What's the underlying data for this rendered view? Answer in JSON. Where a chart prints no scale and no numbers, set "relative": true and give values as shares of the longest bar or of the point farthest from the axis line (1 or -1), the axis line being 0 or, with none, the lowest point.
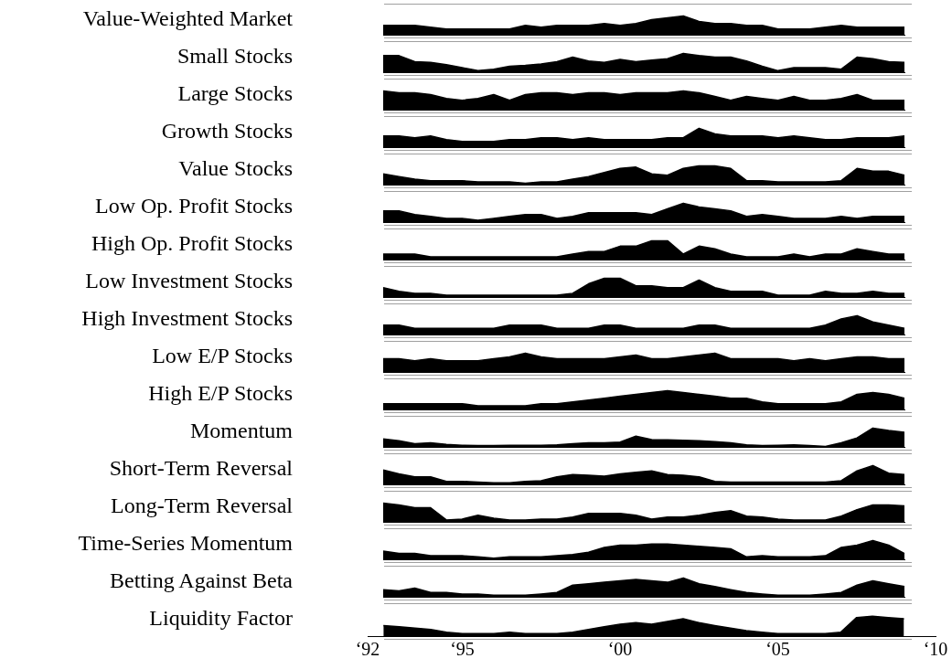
{
  "chart_data": [
    {
      "type": "area",
      "ylabel": "Value-Weighted Market",
      "relative": true,
      "color": "#000000",
      "categories": [
        null,
        null,
        null,
        null,
        null,
        null,
        null,
        null,
        null,
        null,
        null,
        null,
        null,
        null,
        null,
        null,
        null,
        null,
        null,
        null,
        null,
        null,
        null,
        null,
        null,
        null,
        null,
        null,
        null,
        null,
        null,
        null,
        null,
        null
      ],
      "values": [
        0.5,
        0.5,
        0.5,
        0.4,
        0.3,
        0.3,
        0.3,
        0.3,
        0.3,
        0.5,
        0.4,
        0.5,
        0.5,
        0.5,
        0.6,
        0.5,
        0.6,
        0.8,
        0.9,
        1,
        0.7,
        0.6,
        0.6,
        0.5,
        0.5,
        0.3,
        0.3,
        0.3,
        0.4,
        0.5,
        0.4,
        0.4,
        0.4,
        0.4
      ]
    },
    {
      "type": "area",
      "ylabel": "Small Stocks",
      "relative": true,
      "color": "#000000",
      "categories": [
        null,
        null,
        null,
        null,
        null,
        null,
        null,
        null,
        null,
        null,
        null,
        null,
        null,
        null,
        null,
        null,
        null,
        null,
        null,
        null,
        null,
        null,
        null,
        null,
        null,
        null,
        null,
        null,
        null,
        null,
        null,
        null,
        null,
        null
      ],
      "values": [
        0.88,
        0.88,
        0.56,
        0.52,
        0.4,
        0.24,
        0.08,
        0.16,
        0.32,
        0.36,
        0.44,
        0.56,
        0.8,
        0.6,
        0.52,
        0.68,
        0.56,
        0.64,
        0.72,
        1,
        0.88,
        0.8,
        0.8,
        0.6,
        0.32,
        0.08,
        0.24,
        0.24,
        0.24,
        0.16,
        0.8,
        0.72,
        0.56,
        0.52
      ]
    },
    {
      "type": "area",
      "ylabel": "Large Stocks",
      "relative": true,
      "color": "#000000",
      "categories": [
        null,
        null,
        null,
        null,
        null,
        null,
        null,
        null,
        null,
        null,
        null,
        null,
        null,
        null,
        null,
        null,
        null,
        null,
        null,
        null,
        null,
        null,
        null,
        null,
        null,
        null,
        null,
        null,
        null,
        null,
        null,
        null,
        null,
        null
      ],
      "values": [
        1,
        0.9,
        0.9,
        0.8,
        0.6,
        0.5,
        0.6,
        0.8,
        0.5,
        0.8,
        0.9,
        0.9,
        0.8,
        0.9,
        0.9,
        0.8,
        0.9,
        0.9,
        0.9,
        1,
        0.9,
        0.7,
        0.5,
        0.7,
        0.6,
        0.5,
        0.7,
        0.5,
        0.5,
        0.6,
        0.8,
        0.5,
        0.5,
        0.5
      ]
    },
    {
      "type": "area",
      "ylabel": "Growth Stocks",
      "relative": true,
      "color": "#000000",
      "categories": [
        null,
        null,
        null,
        null,
        null,
        null,
        null,
        null,
        null,
        null,
        null,
        null,
        null,
        null,
        null,
        null,
        null,
        null,
        null,
        null,
        null,
        null,
        null,
        null,
        null,
        null,
        null,
        null,
        null,
        null,
        null,
        null,
        null,
        null
      ],
      "values": [
        0.6,
        0.6,
        0.5,
        0.6,
        0.4,
        0.3,
        0.3,
        0.3,
        0.4,
        0.4,
        0.5,
        0.5,
        0.4,
        0.5,
        0.4,
        0.4,
        0.4,
        0.4,
        0.5,
        0.5,
        1,
        0.7,
        0.6,
        0.6,
        0.6,
        0.5,
        0.6,
        0.5,
        0.4,
        0.4,
        0.5,
        0.5,
        0.5,
        0.6
      ]
    },
    {
      "type": "area",
      "ylabel": "Value Stocks",
      "relative": true,
      "color": "#000000",
      "categories": [
        null,
        null,
        null,
        null,
        null,
        null,
        null,
        null,
        null,
        null,
        null,
        null,
        null,
        null,
        null,
        null,
        null,
        null,
        null,
        null,
        null,
        null,
        null,
        null,
        null,
        null,
        null,
        null,
        null,
        null,
        null,
        null,
        null,
        null
      ],
      "values": [
        0.57,
        0.43,
        0.29,
        0.21,
        0.21,
        0.21,
        0.14,
        0.14,
        0.14,
        0.07,
        0.14,
        0.14,
        0.29,
        0.43,
        0.64,
        0.86,
        0.93,
        0.57,
        0.5,
        0.86,
        1,
        1,
        0.86,
        0.21,
        0.21,
        0.14,
        0.14,
        0.14,
        0.14,
        0.21,
        0.86,
        0.71,
        0.71,
        0.5
      ]
    },
    {
      "type": "area",
      "ylabel": "Low Op. Profit Stocks",
      "relative": true,
      "color": "#000000",
      "categories": [
        null,
        null,
        null,
        null,
        null,
        null,
        null,
        null,
        null,
        null,
        null,
        null,
        null,
        null,
        null,
        null,
        null,
        null,
        null,
        null,
        null,
        null,
        null,
        null,
        null,
        null,
        null,
        null,
        null,
        null,
        null,
        null,
        null,
        null
      ],
      "values": [
        0.6,
        0.6,
        0.4,
        0.3,
        0.2,
        0.2,
        0.1,
        0.2,
        0.3,
        0.4,
        0.4,
        0.2,
        0.3,
        0.5,
        0.5,
        0.5,
        0.5,
        0.4,
        0.7,
        1,
        0.8,
        0.7,
        0.6,
        0.3,
        0.4,
        0.3,
        0.2,
        0.2,
        0.2,
        0.3,
        0.2,
        0.3,
        0.3,
        0.3
      ]
    },
    {
      "type": "area",
      "ylabel": "High Op. Profit Stocks",
      "relative": true,
      "color": "#000000",
      "categories": [
        null,
        null,
        null,
        null,
        null,
        null,
        null,
        null,
        null,
        null,
        null,
        null,
        null,
        null,
        null,
        null,
        null,
        null,
        null,
        null,
        null,
        null,
        null,
        null,
        null,
        null,
        null,
        null,
        null,
        null,
        null,
        null,
        null,
        null
      ],
      "values": [
        0.29,
        0.29,
        0.29,
        0.14,
        0.14,
        0.14,
        0.14,
        0.14,
        0.14,
        0.14,
        0.14,
        0.14,
        0.29,
        0.43,
        0.43,
        0.71,
        0.71,
        1,
        1,
        0.29,
        0.71,
        0.57,
        0.29,
        0.14,
        0.14,
        0.14,
        0.29,
        0.14,
        0.29,
        0.29,
        0.57,
        0.43,
        0.29,
        0.29
      ]
    },
    {
      "type": "area",
      "ylabel": "Low Investment Stocks",
      "relative": true,
      "color": "#000000",
      "categories": [
        null,
        null,
        null,
        null,
        null,
        null,
        null,
        null,
        null,
        null,
        null,
        null,
        null,
        null,
        null,
        null,
        null,
        null,
        null,
        null,
        null,
        null,
        null,
        null,
        null,
        null,
        null,
        null,
        null,
        null,
        null,
        null,
        null,
        null
      ],
      "values": [
        0.5,
        0.3,
        0.2,
        0.2,
        0.1,
        0.1,
        0.1,
        0.1,
        0.1,
        0.1,
        0.1,
        0.1,
        0.2,
        0.7,
        1,
        1,
        0.6,
        0.6,
        0.5,
        0.5,
        0.9,
        0.5,
        0.3,
        0.3,
        0.3,
        0.1,
        0.1,
        0.1,
        0.3,
        0.2,
        0.2,
        0.3,
        0.2,
        0.2
      ]
    },
    {
      "type": "area",
      "ylabel": "High Investment Stocks",
      "relative": true,
      "color": "#000000",
      "categories": [
        null,
        null,
        null,
        null,
        null,
        null,
        null,
        null,
        null,
        null,
        null,
        null,
        null,
        null,
        null,
        null,
        null,
        null,
        null,
        null,
        null,
        null,
        null,
        null,
        null,
        null,
        null,
        null,
        null,
        null,
        null,
        null,
        null,
        null
      ],
      "values": [
        0.5,
        0.5,
        0.33,
        0.33,
        0.33,
        0.33,
        0.33,
        0.33,
        0.5,
        0.5,
        0.5,
        0.33,
        0.33,
        0.33,
        0.5,
        0.5,
        0.33,
        0.33,
        0.33,
        0.33,
        0.5,
        0.5,
        0.33,
        0.33,
        0.33,
        0.33,
        0.33,
        0.33,
        0.5,
        0.83,
        1,
        0.67,
        0.5,
        0.33
      ]
    },
    {
      "type": "area",
      "ylabel": "Low E/P Stocks",
      "relative": true,
      "color": "#000000",
      "categories": [
        null,
        null,
        null,
        null,
        null,
        null,
        null,
        null,
        null,
        null,
        null,
        null,
        null,
        null,
        null,
        null,
        null,
        null,
        null,
        null,
        null,
        null,
        null,
        null,
        null,
        null,
        null,
        null,
        null,
        null,
        null,
        null,
        null,
        null
      ],
      "values": [
        0.7,
        0.7,
        0.6,
        0.7,
        0.6,
        0.6,
        0.6,
        0.7,
        0.8,
        1,
        0.8,
        0.7,
        0.7,
        0.7,
        0.7,
        0.8,
        0.9,
        0.7,
        0.7,
        0.8,
        0.9,
        1,
        0.7,
        0.7,
        0.7,
        0.7,
        0.6,
        0.7,
        0.6,
        0.7,
        0.8,
        0.8,
        0.7,
        0.7
      ]
    },
    {
      "type": "area",
      "ylabel": "High E/P Stocks",
      "relative": true,
      "color": "#000000",
      "categories": [
        null,
        null,
        null,
        null,
        null,
        null,
        null,
        null,
        null,
        null,
        null,
        null,
        null,
        null,
        null,
        null,
        null,
        null,
        null,
        null,
        null,
        null,
        null,
        null,
        null,
        null,
        null,
        null,
        null,
        null,
        null,
        null,
        null,
        null
      ],
      "values": [
        0.3,
        0.3,
        0.3,
        0.3,
        0.3,
        0.3,
        0.2,
        0.2,
        0.2,
        0.2,
        0.3,
        0.3,
        0.4,
        0.5,
        0.6,
        0.7,
        0.8,
        0.9,
        1,
        0.9,
        0.8,
        0.7,
        0.6,
        0.6,
        0.4,
        0.3,
        0.3,
        0.3,
        0.3,
        0.4,
        0.8,
        0.9,
        0.8,
        0.6
      ]
    },
    {
      "type": "area",
      "ylabel": "Momentum",
      "relative": true,
      "color": "#000000",
      "categories": [
        null,
        null,
        null,
        null,
        null,
        null,
        null,
        null,
        null,
        null,
        null,
        null,
        null,
        null,
        null,
        null,
        null,
        null,
        null,
        null,
        null,
        null,
        null,
        null,
        null,
        null,
        null,
        null,
        null,
        null,
        null,
        null,
        null,
        null
      ],
      "values": [
        0.43,
        0.33,
        0.17,
        0.22,
        0.13,
        0.09,
        0.07,
        0.07,
        0.09,
        0.09,
        0.09,
        0.11,
        0.17,
        0.22,
        0.22,
        0.26,
        0.57,
        0.39,
        0.37,
        0.35,
        0.33,
        0.28,
        0.22,
        0.11,
        0.07,
        0.09,
        0.11,
        0.07,
        0.02,
        0.22,
        0.48,
        1,
        0.87,
        0.78
      ]
    },
    {
      "type": "area",
      "ylabel": "Short-Term Reversal",
      "relative": true,
      "color": "#000000",
      "categories": [
        null,
        null,
        null,
        null,
        null,
        null,
        null,
        null,
        null,
        null,
        null,
        null,
        null,
        null,
        null,
        null,
        null,
        null,
        null,
        null,
        null,
        null,
        null,
        null,
        null,
        null,
        null,
        null,
        null,
        null,
        null,
        null,
        null,
        null
      ],
      "values": [
        0.76,
        0.56,
        0.4,
        0.4,
        0.16,
        0.16,
        0.12,
        0.08,
        0.08,
        0.16,
        0.2,
        0.4,
        0.52,
        0.48,
        0.44,
        0.56,
        0.64,
        0.72,
        0.52,
        0.48,
        0.4,
        0.16,
        0.12,
        0.12,
        0.12,
        0.12,
        0.12,
        0.12,
        0.12,
        0.2,
        0.72,
        1,
        0.6,
        0.52
      ]
    },
    {
      "type": "area",
      "ylabel": "Long-Term Reversal",
      "relative": true,
      "color": "#000000",
      "categories": [
        null,
        null,
        null,
        null,
        null,
        null,
        null,
        null,
        null,
        null,
        null,
        null,
        null,
        null,
        null,
        null,
        null,
        null,
        null,
        null,
        null,
        null,
        null,
        null,
        null,
        null,
        null,
        null,
        null,
        null,
        null,
        null,
        null,
        null
      ],
      "values": [
        1,
        0.9,
        0.75,
        0.75,
        0.1,
        0.15,
        0.35,
        0.2,
        0.1,
        0.1,
        0.15,
        0.15,
        0.25,
        0.45,
        0.45,
        0.45,
        0.35,
        0.15,
        0.25,
        0.25,
        0.35,
        0.5,
        0.6,
        0.3,
        0.25,
        0.15,
        0.1,
        0.1,
        0.1,
        0.3,
        0.65,
        0.9,
        0.9,
        0.85
      ]
    },
    {
      "type": "area",
      "ylabel": "Time-Series Momentum",
      "relative": true,
      "color": "#000000",
      "categories": [
        null,
        null,
        null,
        null,
        null,
        null,
        null,
        null,
        null,
        null,
        null,
        null,
        null,
        null,
        null,
        null,
        null,
        null,
        null,
        null,
        null,
        null,
        null,
        null,
        null,
        null,
        null,
        null,
        null,
        null,
        null,
        null,
        null,
        null
      ],
      "values": [
        0.44,
        0.31,
        0.31,
        0.19,
        0.19,
        0.19,
        0.13,
        0.06,
        0.13,
        0.13,
        0.13,
        0.19,
        0.25,
        0.38,
        0.63,
        0.75,
        0.75,
        0.81,
        0.81,
        0.75,
        0.69,
        0.63,
        0.56,
        0.13,
        0.19,
        0.13,
        0.13,
        0.13,
        0.19,
        0.63,
        0.75,
        1,
        0.75,
        0.31
      ]
    },
    {
      "type": "area",
      "ylabel": "Betting Against Beta",
      "relative": true,
      "color": "#000000",
      "categories": [
        null,
        null,
        null,
        null,
        null,
        null,
        null,
        null,
        null,
        null,
        null,
        null,
        null,
        null,
        null,
        null,
        null,
        null,
        null,
        null,
        null,
        null,
        null,
        null,
        null,
        null,
        null,
        null,
        null,
        null,
        null,
        null,
        null,
        null
      ],
      "values": [
        0.38,
        0.31,
        0.46,
        0.23,
        0.23,
        0.15,
        0.15,
        0.08,
        0.08,
        0.08,
        0.15,
        0.23,
        0.62,
        0.69,
        0.77,
        0.85,
        0.92,
        0.85,
        0.77,
        1,
        0.69,
        0.54,
        0.38,
        0.23,
        0.15,
        0.08,
        0.08,
        0.08,
        0.15,
        0.23,
        0.62,
        0.85,
        0.69,
        0.54
      ]
    },
    {
      "type": "area",
      "ylabel": "Liquidity Factor",
      "relative": true,
      "color": "#000000",
      "xlim": [
        "1992",
        "2010"
      ],
      "xticks": [
        {
          "value": "1992",
          "label": "‘92"
        },
        {
          "value": "1995",
          "label": "‘95"
        },
        {
          "value": "2000",
          "label": "‘00"
        },
        {
          "value": "2005",
          "label": "‘05"
        },
        {
          "value": "2010",
          "label": "‘10"
        }
      ],
      "tick_labels": "x",
      "x": [
        "1992-07",
        "1993-01",
        "1993-07",
        "1994-01",
        "1994-07",
        "1995-01",
        "1995-07",
        "1996-01",
        "1996-07",
        "1997-01",
        "1997-07",
        "1998-01",
        "1998-07",
        "1999-01",
        "1999-07",
        "2000-01",
        "2000-07",
        "2001-01",
        "2001-07",
        "2002-01",
        "2002-07",
        "2003-01",
        "2003-07",
        "2004-01",
        "2004-07",
        "2005-01",
        "2005-07",
        "2006-01",
        "2006-07",
        "2007-01",
        "2007-07",
        "2008-01",
        "2008-07",
        "2009-01"
      ],
      "values": [
        0.53,
        0.47,
        0.4,
        0.33,
        0.2,
        0.13,
        0.13,
        0.13,
        0.2,
        0.13,
        0.13,
        0.13,
        0.2,
        0.33,
        0.47,
        0.6,
        0.67,
        0.6,
        0.73,
        0.87,
        0.67,
        0.53,
        0.4,
        0.27,
        0.2,
        0.13,
        0.13,
        0.13,
        0.13,
        0.2,
        0.93,
        1,
        0.93,
        0.87
      ]
    }
  ]
}
